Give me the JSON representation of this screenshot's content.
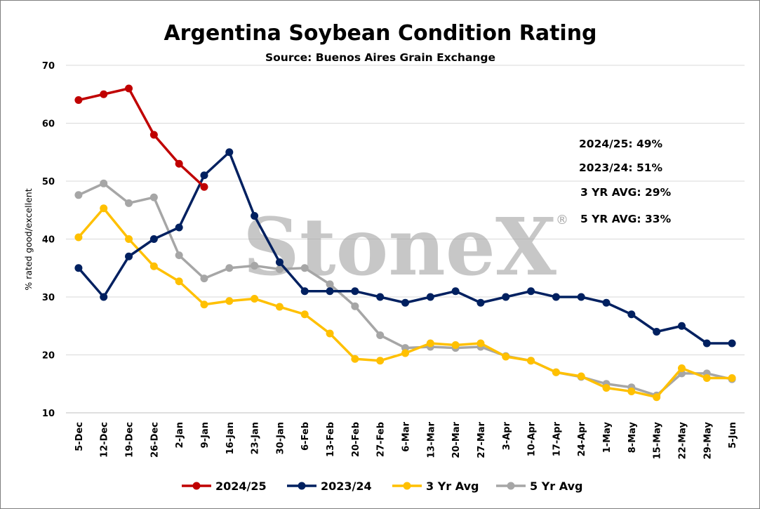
{
  "chart_data": {
    "type": "line",
    "title": "Argentina Soybean Condition Rating",
    "subtitle": "Source: Buenos Aires Grain Exchange",
    "ylabel": "% rated good/excellent",
    "xlabel": "",
    "ylim": [
      10,
      70
    ],
    "yticks": [
      10,
      20,
      30,
      40,
      50,
      60,
      70
    ],
    "grid": true,
    "legend_position": "bottom",
    "categories": [
      "5-Dec",
      "12-Dec",
      "19-Dec",
      "26-Dec",
      "2-Jan",
      "9-Jan",
      "16-Jan",
      "23-Jan",
      "30-Jan",
      "6-Feb",
      "13-Feb",
      "20-Feb",
      "27-Feb",
      "6-Mar",
      "13-Mar",
      "20-Mar",
      "27-Mar",
      "3-Apr",
      "10-Apr",
      "17-Apr",
      "24-Apr",
      "1-May",
      "8-May",
      "15-May",
      "22-May",
      "29-May",
      "5-Jun"
    ],
    "series": [
      {
        "name": "2024/25",
        "color": "#c00000",
        "values": [
          64,
          65,
          66,
          58,
          53,
          49,
          null,
          null,
          null,
          null,
          null,
          null,
          null,
          null,
          null,
          null,
          null,
          null,
          null,
          null,
          null,
          null,
          null,
          null,
          null,
          null,
          null
        ]
      },
      {
        "name": "2023/24",
        "color": "#002060",
        "values": [
          35,
          30,
          37,
          40,
          42,
          51,
          55,
          44,
          36,
          31,
          31,
          31,
          30,
          29,
          30,
          31,
          29,
          30,
          31,
          30,
          30,
          29,
          27,
          24,
          25,
          22,
          22
        ]
      },
      {
        "name": "3 Yr Avg",
        "color": "#ffc000",
        "values": [
          40.3,
          45.3,
          40,
          35.3,
          32.7,
          28.7,
          29.3,
          29.7,
          28.3,
          27,
          23.7,
          19.3,
          19,
          20.3,
          22,
          21.7,
          22,
          19.7,
          19,
          17,
          16.3,
          14.3,
          13.7,
          12.7,
          17.7,
          16,
          16
        ]
      },
      {
        "name": "5 Yr Avg",
        "color": "#a6a6a6",
        "values": [
          47.6,
          49.6,
          46.2,
          47.2,
          37.2,
          33.2,
          35,
          35.4,
          34.8,
          35,
          32.2,
          28.4,
          23.4,
          21.2,
          21.4,
          21.2,
          21.4,
          19.8,
          19,
          17,
          16.2,
          15,
          14.4,
          13,
          16.8,
          16.8,
          15.8
        ]
      }
    ],
    "annotations": [
      "2024/25: 49%",
      "2023/24: 51%",
      "3 YR AVG: 29%",
      "5 YR AVG: 33%"
    ],
    "watermark": "StoneX",
    "watermark_mark": "®"
  }
}
